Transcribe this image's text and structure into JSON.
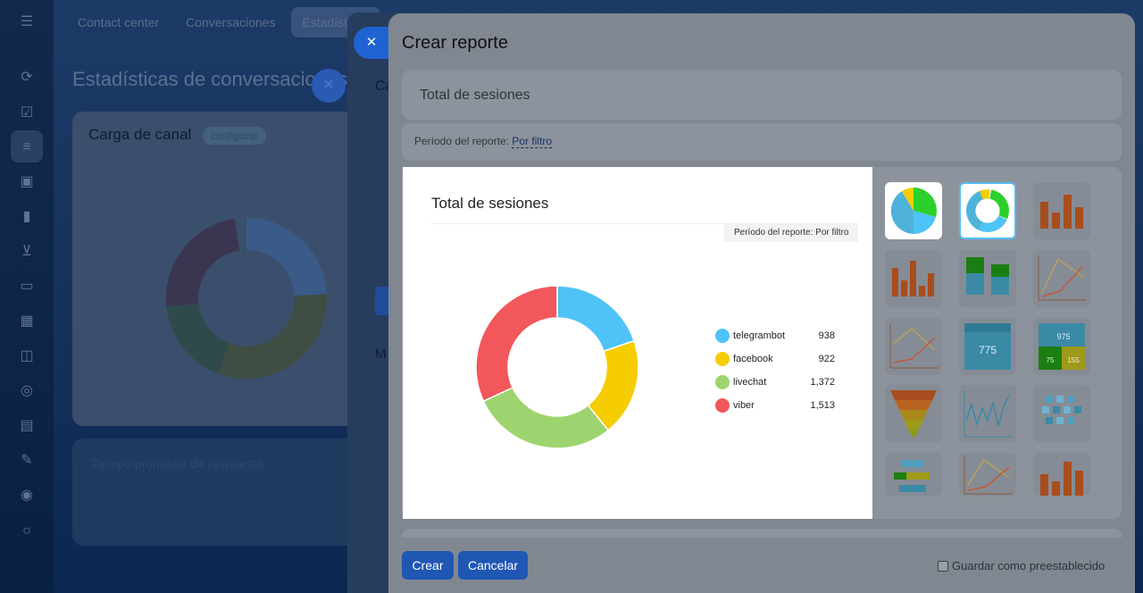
{
  "background": {
    "tabs": [
      "Contact center",
      "Conversaciones",
      "Estadísticas"
    ],
    "page_title": "Estadísticas de conversaciones",
    "card1_title": "Carga de canal",
    "card1_link": "configurar",
    "card2_title": "Tiempo promedio de respuesta",
    "mid_letter_c": "Ca",
    "mid_letter_m": "M"
  },
  "modal": {
    "title": "Crear reporte",
    "report_name": "Total de sesiones",
    "period_label": "Período del reporte:",
    "period_value": "Por filtro",
    "create_button": "Crear",
    "cancel_button": "Cancelar",
    "save_default_label": "Guardar como preestablecido"
  },
  "preview": {
    "title": "Total de sesiones",
    "period_badge": "Período del reporte: Por filtro"
  },
  "chart_data": {
    "type": "pie",
    "style": "donut",
    "title": "Total de sesiones",
    "categories": [
      "telegrambot",
      "facebook",
      "livechat",
      "viber"
    ],
    "values": [
      938,
      922,
      1372,
      1513
    ],
    "value_labels": [
      "938",
      "922",
      "1,372",
      "1,513"
    ],
    "colors": [
      "#4fc3f7",
      "#f6cd00",
      "#9ed46f",
      "#f2575b"
    ],
    "legend_position": "right"
  },
  "gallery": {
    "thumbnails": [
      "pie-chart-icon",
      "donut-chart-icon",
      "bar-chart-icon",
      "bar-chart-icon",
      "stacked-bar-icon",
      "line-chart-icon",
      "line-chart-icon",
      "number-widget-icon",
      "number-grid-icon",
      "funnel-icon",
      "line-series-icon",
      "heatmap-icon",
      "gantt-icon",
      "line-chart-icon",
      "bar-chart-icon"
    ],
    "number_widget_value": "775",
    "number_grid_values": [
      "975",
      "75",
      "155"
    ]
  }
}
